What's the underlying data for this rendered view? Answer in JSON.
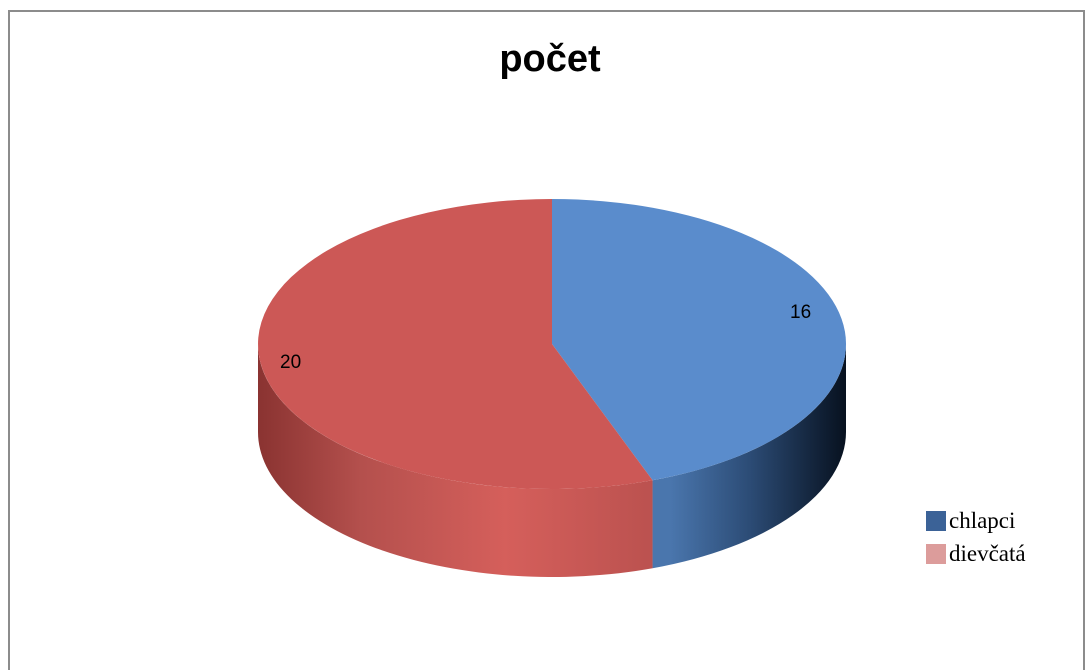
{
  "chart_data": {
    "type": "pie",
    "title": "počet",
    "three_d": true,
    "categories": [
      "chlapci",
      "dievčatá"
    ],
    "values": [
      16,
      20
    ],
    "data_labels": [
      "16",
      "20"
    ],
    "colors": [
      "#5a8ccc",
      "#cc5856"
    ],
    "legend": {
      "placement": "right",
      "entries": [
        {
          "label": "chlapci",
          "color": "#3b6297"
        },
        {
          "label": "dievčatá",
          "color": "#dc9c9b"
        }
      ]
    }
  }
}
